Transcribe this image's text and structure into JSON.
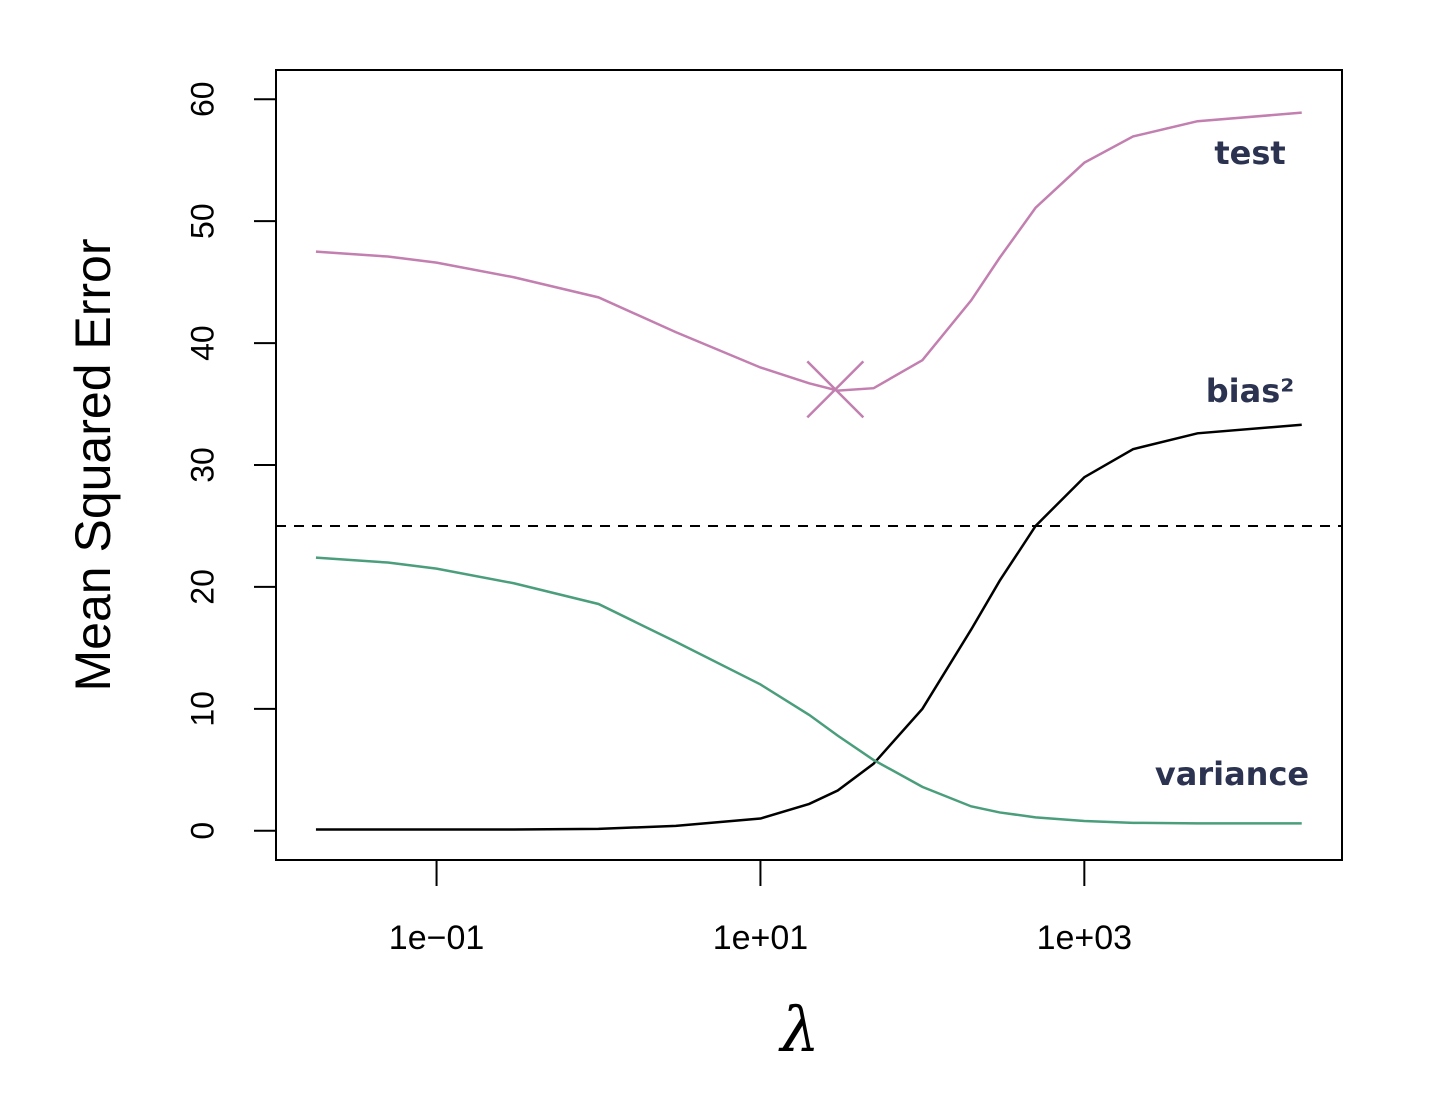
{
  "chart_data": {
    "type": "line",
    "x_label": "λ",
    "y_label": "Mean Squared Error",
    "xscale": "log",
    "x": [
      0.018,
      0.05,
      0.1,
      0.3,
      1,
      3,
      10,
      20,
      30,
      50,
      100,
      200,
      300,
      500,
      1000,
      2000,
      5000,
      22000
    ],
    "series": [
      {
        "name": "test",
        "color": "#c27fb0",
        "values": [
          47.5,
          47.1,
          46.6,
          45.4,
          43.75,
          40.9,
          38,
          36.7,
          36.1,
          36.3,
          38.6,
          43.5,
          47,
          51.1,
          54.8,
          56.95,
          58.2,
          58.9
        ]
      },
      {
        "name": "bias²",
        "color": "#000000",
        "values": [
          0.1,
          0.1,
          0.1,
          0.1,
          0.15,
          0.4,
          1,
          2.2,
          3.3,
          5.5,
          10,
          16.5,
          20.5,
          25,
          29,
          31.3,
          32.6,
          33.3
        ]
      },
      {
        "name": "variance",
        "color": "#4a9e7c",
        "values": [
          22.4,
          22.0,
          21.5,
          20.3,
          18.6,
          15.5,
          12,
          9.5,
          7.8,
          5.8,
          3.6,
          2.0,
          1.5,
          1.1,
          0.8,
          0.65,
          0.6,
          0.6
        ]
      }
    ],
    "hline": 25,
    "minimum_marker": {
      "x": 29,
      "y": 36.2,
      "color": "#c27fb0"
    },
    "xlim": [
      0.0102,
      39000
    ],
    "ylim": [
      -2.4,
      62.4
    ],
    "xticks": [
      {
        "value": 0.1,
        "label": "1e−01"
      },
      {
        "value": 10,
        "label": "1e+01"
      },
      {
        "value": 1000,
        "label": "1e+03"
      }
    ],
    "yticks": [
      0,
      10,
      20,
      30,
      40,
      50,
      60
    ]
  }
}
